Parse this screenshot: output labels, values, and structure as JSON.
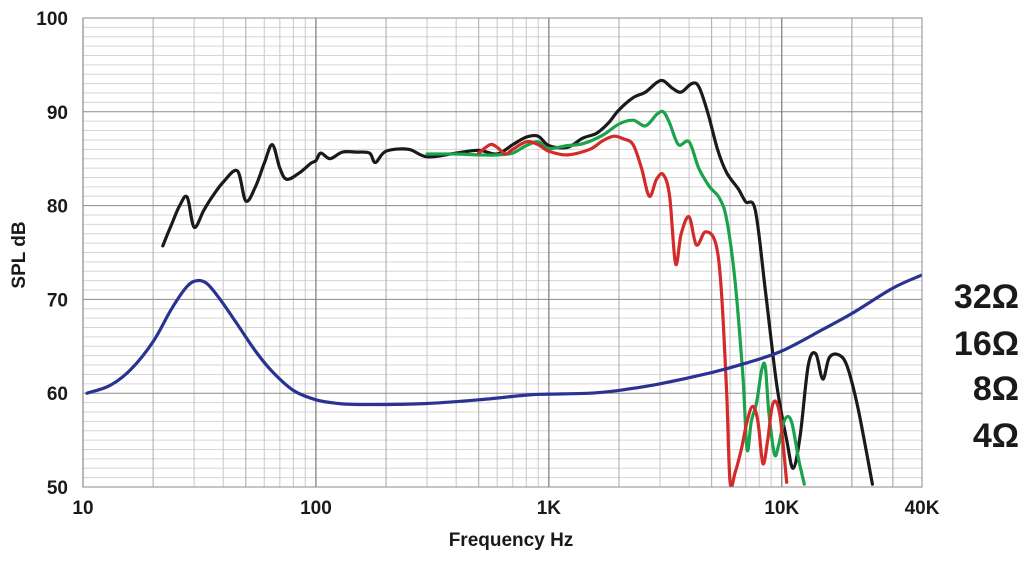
{
  "chart_data": {
    "type": "line",
    "xlabel": "Frequency Hz",
    "ylabel": "SPL dB",
    "x_scale": "log",
    "xlim": [
      10,
      40000
    ],
    "ylim": [
      50,
      100
    ],
    "x_ticks": [
      10,
      100,
      1000,
      10000,
      40000
    ],
    "x_tick_labels": [
      "10",
      "100",
      "1K",
      "10K",
      "40K"
    ],
    "y_ticks": [
      50,
      60,
      70,
      80,
      90,
      100
    ],
    "y_tick_labels": [
      "50",
      "60",
      "70",
      "80",
      "90",
      "100"
    ],
    "grid": true,
    "right_labels": [
      "32Ω",
      "16Ω",
      "8Ω",
      "4Ω"
    ],
    "series": [
      {
        "color": "#1a1a1a",
        "points": [
          [
            22,
            75.7
          ],
          [
            24,
            78
          ],
          [
            26,
            80
          ],
          [
            28,
            80.9
          ],
          [
            30,
            77.7
          ],
          [
            33,
            79.5
          ],
          [
            36,
            81
          ],
          [
            40,
            82.5
          ],
          [
            46,
            83.7
          ],
          [
            50,
            80.5
          ],
          [
            55,
            82
          ],
          [
            60,
            84.5
          ],
          [
            65,
            86.5
          ],
          [
            70,
            84
          ],
          [
            75,
            82.8
          ],
          [
            85,
            83.5
          ],
          [
            95,
            84.5
          ],
          [
            100,
            84.8
          ],
          [
            105,
            85.6
          ],
          [
            115,
            85
          ],
          [
            130,
            85.7
          ],
          [
            150,
            85.7
          ],
          [
            170,
            85.6
          ],
          [
            180,
            84.6
          ],
          [
            200,
            85.8
          ],
          [
            250,
            86
          ],
          [
            300,
            85.2
          ],
          [
            400,
            85.6
          ],
          [
            500,
            85.9
          ],
          [
            600,
            85.5
          ],
          [
            700,
            86.5
          ],
          [
            800,
            87.3
          ],
          [
            900,
            87.4
          ],
          [
            1000,
            86.4
          ],
          [
            1200,
            86.2
          ],
          [
            1400,
            87.2
          ],
          [
            1600,
            87.7
          ],
          [
            1800,
            88.8
          ],
          [
            2000,
            90.2
          ],
          [
            2300,
            91.5
          ],
          [
            2600,
            92.1
          ],
          [
            2900,
            93.1
          ],
          [
            3100,
            93.3
          ],
          [
            3400,
            92.5
          ],
          [
            3700,
            92.1
          ],
          [
            4100,
            93
          ],
          [
            4400,
            92.7
          ],
          [
            4800,
            90
          ],
          [
            5300,
            86
          ],
          [
            5800,
            83.5
          ],
          [
            6500,
            81.8
          ],
          [
            7000,
            80.4
          ],
          [
            7700,
            79.5
          ],
          [
            8500,
            71
          ],
          [
            9500,
            61
          ],
          [
            10500,
            55
          ],
          [
            11200,
            52
          ],
          [
            12000,
            55.5
          ],
          [
            13000,
            63
          ],
          [
            14000,
            64.2
          ],
          [
            15000,
            61.5
          ],
          [
            16000,
            63.8
          ],
          [
            17500,
            64.1
          ],
          [
            19000,
            63
          ],
          [
            21000,
            59
          ],
          [
            23000,
            54
          ],
          [
            24500,
            50.3
          ]
        ]
      },
      {
        "color": "#1aa34a",
        "points": [
          [
            300,
            85.5
          ],
          [
            400,
            85.5
          ],
          [
            500,
            85.4
          ],
          [
            600,
            85.4
          ],
          [
            700,
            85.6
          ],
          [
            800,
            86.4
          ],
          [
            900,
            86.8
          ],
          [
            1000,
            86.1
          ],
          [
            1200,
            86.4
          ],
          [
            1400,
            86.6
          ],
          [
            1700,
            87.5
          ],
          [
            2000,
            88.7
          ],
          [
            2300,
            89.1
          ],
          [
            2600,
            88.5
          ],
          [
            2900,
            89.7
          ],
          [
            3100,
            90
          ],
          [
            3300,
            88.8
          ],
          [
            3600,
            86.5
          ],
          [
            4000,
            86.8
          ],
          [
            4400,
            84
          ],
          [
            4900,
            82
          ],
          [
            5400,
            80.8
          ],
          [
            5800,
            78.5
          ],
          [
            6300,
            72
          ],
          [
            6800,
            62
          ],
          [
            7100,
            54
          ],
          [
            7400,
            57
          ],
          [
            7800,
            59
          ],
          [
            8200,
            62.5
          ],
          [
            8500,
            62.8
          ],
          [
            8800,
            58
          ],
          [
            9300,
            53.5
          ],
          [
            9700,
            54.5
          ],
          [
            10300,
            57.2
          ],
          [
            11000,
            57
          ],
          [
            11800,
            53
          ],
          [
            12500,
            50.3
          ]
        ]
      },
      {
        "color": "#d42a2a",
        "points": [
          [
            500,
            85.6
          ],
          [
            560,
            86.5
          ],
          [
            600,
            86.2
          ],
          [
            650,
            85.5
          ],
          [
            700,
            86
          ],
          [
            800,
            86.8
          ],
          [
            900,
            86.5
          ],
          [
            1000,
            85.8
          ],
          [
            1200,
            85.4
          ],
          [
            1500,
            86
          ],
          [
            1700,
            86.9
          ],
          [
            1900,
            87.4
          ],
          [
            2100,
            87.1
          ],
          [
            2300,
            86.5
          ],
          [
            2500,
            84
          ],
          [
            2700,
            81
          ],
          [
            2900,
            82.8
          ],
          [
            3100,
            83.3
          ],
          [
            3300,
            81
          ],
          [
            3500,
            73.8
          ],
          [
            3700,
            77
          ],
          [
            4000,
            78.8
          ],
          [
            4300,
            75.8
          ],
          [
            4700,
            77.2
          ],
          [
            5200,
            76
          ],
          [
            5500,
            71
          ],
          [
            5800,
            60
          ],
          [
            6000,
            50.5
          ],
          [
            6300,
            51.5
          ],
          [
            6700,
            54
          ],
          [
            7100,
            57
          ],
          [
            7500,
            58.6
          ],
          [
            7900,
            57
          ],
          [
            8300,
            52.5
          ],
          [
            8700,
            55
          ],
          [
            9100,
            58.6
          ],
          [
            9500,
            59
          ],
          [
            9900,
            57
          ],
          [
            10500,
            50.5
          ]
        ]
      },
      {
        "color": "#2b3392",
        "points": [
          [
            10.4,
            60
          ],
          [
            13,
            60.8
          ],
          [
            16,
            62.5
          ],
          [
            20,
            65.5
          ],
          [
            24,
            69
          ],
          [
            28,
            71.4
          ],
          [
            31,
            72
          ],
          [
            34,
            71.7
          ],
          [
            38,
            70.3
          ],
          [
            45,
            67.7
          ],
          [
            55,
            64.5
          ],
          [
            65,
            62.3
          ],
          [
            80,
            60.3
          ],
          [
            100,
            59.3
          ],
          [
            125,
            58.9
          ],
          [
            150,
            58.8
          ],
          [
            200,
            58.8
          ],
          [
            300,
            58.9
          ],
          [
            500,
            59.3
          ],
          [
            800,
            59.8
          ],
          [
            1000,
            59.9
          ],
          [
            1500,
            60
          ],
          [
            2000,
            60.3
          ],
          [
            3000,
            61
          ],
          [
            5000,
            62.2
          ],
          [
            7000,
            63.2
          ],
          [
            10000,
            64.5
          ],
          [
            15000,
            66.8
          ],
          [
            20000,
            68.5
          ],
          [
            30000,
            71.2
          ],
          [
            40000,
            72.6
          ]
        ]
      }
    ]
  }
}
